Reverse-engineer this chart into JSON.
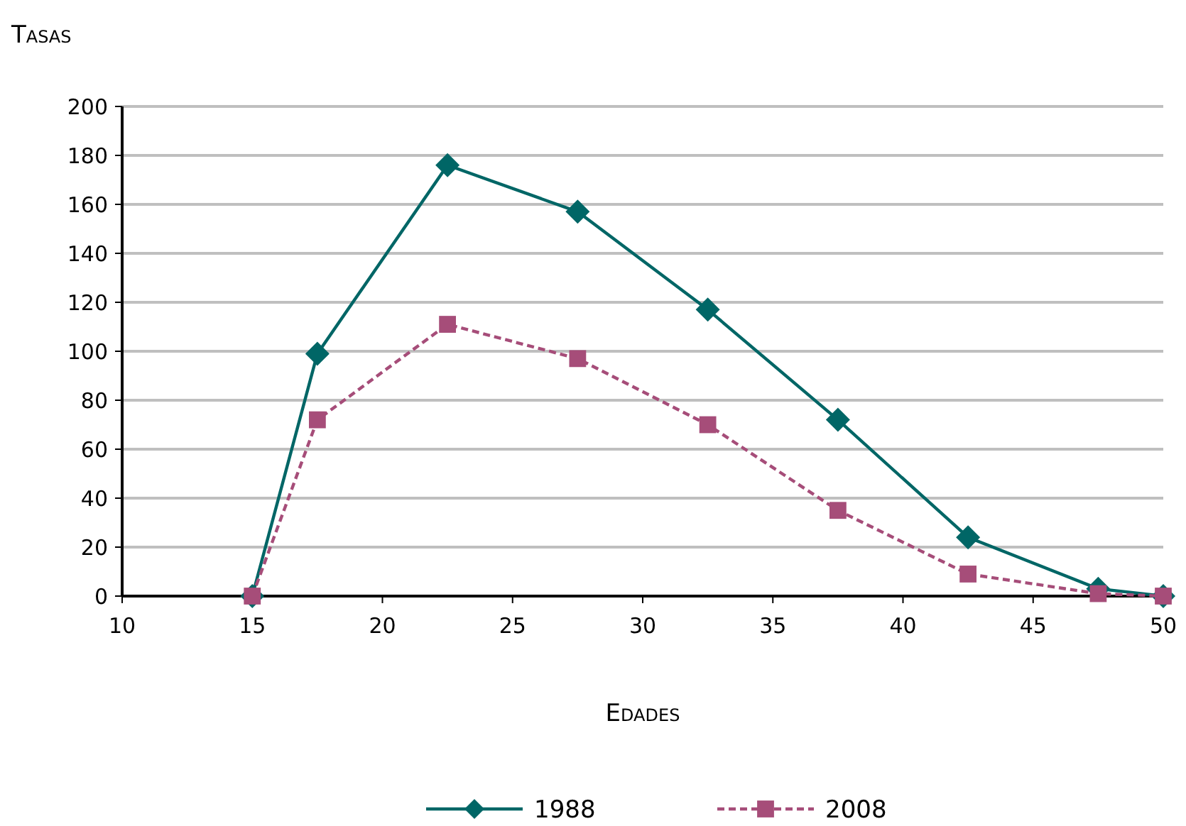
{
  "chart_data": {
    "type": "line",
    "ylabel": "Tasas",
    "xlabel": "Edades",
    "x": [
      15,
      17.5,
      22.5,
      27.5,
      32.5,
      37.5,
      42.5,
      47.5,
      50
    ],
    "series": [
      {
        "name": "1988",
        "color": "#006666",
        "values": [
          0,
          99,
          176,
          157,
          117,
          72,
          24,
          3,
          0
        ],
        "marker": "diamond",
        "line_style": "solid"
      },
      {
        "name": "2008",
        "color": "#a64d79",
        "values": [
          0,
          72,
          111,
          97,
          70,
          35,
          9,
          1,
          0
        ],
        "marker": "square",
        "line_style": "dashed"
      }
    ],
    "xlim": [
      10,
      50
    ],
    "xticks": [
      10,
      15,
      20,
      25,
      30,
      35,
      40,
      45,
      50
    ],
    "ylim": [
      0,
      200
    ],
    "yticks": [
      0,
      20,
      40,
      60,
      80,
      100,
      120,
      140,
      160,
      180,
      200
    ],
    "grid": "y",
    "legend": "bottom"
  }
}
